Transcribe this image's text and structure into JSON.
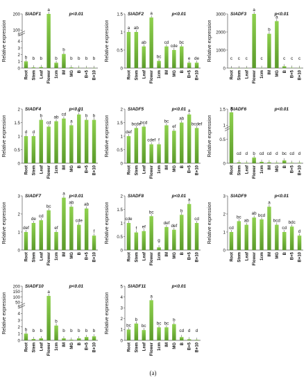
{
  "categories": [
    "Root",
    "Stem",
    "Leaf",
    "Flower",
    "1cm",
    "IM",
    "MG",
    "B",
    "B+5",
    "B+10"
  ],
  "colors": {
    "bar_top": "#8fd14f",
    "bar_bottom": "#5a9a2a",
    "axis": "#555555",
    "text": "#111111"
  },
  "caption": "(a)",
  "chart_data": [
    {
      "type": "bar",
      "title": "SlADF1",
      "pvalue": "p<0.01",
      "ylabel": "Relative expression",
      "ticks": [
        "0",
        "1",
        "2",
        "3",
        "4",
        "5",
        "100",
        "200"
      ],
      "broken_axis": true,
      "values": [
        1,
        0.1,
        0.15,
        200,
        0.8,
        2.1,
        0.1,
        0.05,
        0.03,
        0.02
      ],
      "letters": [
        "b",
        "b",
        "b",
        "a",
        "b",
        "b",
        "b",
        "b",
        "b",
        "b"
      ]
    },
    {
      "type": "bar",
      "title": "SlADF2",
      "pvalue": "p<0.01",
      "ylabel": "Relative expression",
      "ylim": [
        0,
        1.5
      ],
      "ticks": [
        "0",
        "0.5",
        "1",
        "1.5"
      ],
      "values": [
        1,
        1,
        0.6,
        1.4,
        0.2,
        0.6,
        0.5,
        0.6,
        0.15,
        0.15
      ],
      "letters": [
        "a",
        "ab",
        "ab",
        "a",
        "bc",
        "cd",
        "cde",
        "bc",
        "e",
        "de"
      ]
    },
    {
      "type": "bar",
      "title": "SlADF3",
      "pvalue": "p<0.01",
      "ylabel": "Relative expression",
      "ylim": [
        0,
        3000
      ],
      "ticks": [
        "0",
        "1000",
        "2000",
        "3000"
      ],
      "values": [
        1,
        2,
        5,
        3100,
        10,
        1900,
        2600,
        100,
        20,
        10
      ],
      "letters": [
        "c",
        "c",
        "c",
        "a",
        "c",
        "b",
        "a",
        "c",
        "c",
        "c"
      ]
    },
    {
      "type": "bar",
      "title": "SlADF4",
      "pvalue": "p<0.01",
      "ylabel": "Relative expression",
      "ylim": [
        0,
        2
      ],
      "ticks": [
        "0",
        "0.5",
        "1",
        "1.5",
        "2"
      ],
      "values": [
        1,
        1,
        1.6,
        1.35,
        1.55,
        1.65,
        1.4,
        1.8,
        1.6,
        1.6
      ],
      "letters": [
        "d",
        "d",
        "b",
        "cd",
        "ab",
        "cd",
        "a",
        "a",
        "b",
        "b"
      ]
    },
    {
      "type": "bar",
      "title": "SlADF5",
      "pvalue": "p<0.01",
      "ylabel": "Relative expression",
      "ylim": [
        0,
        2
      ],
      "ticks": [
        "0",
        "0.5",
        "1",
        "1.5",
        "2"
      ],
      "values": [
        1,
        1.3,
        1.35,
        0.7,
        0.7,
        1.4,
        1.2,
        1.5,
        1.8,
        1.3
      ],
      "letters": [
        "def",
        "bcde",
        "bcd",
        "cdef",
        "f",
        "bc",
        "ef",
        "ab",
        "a",
        "bcdef"
      ]
    },
    {
      "type": "bar",
      "title": "SlADF6",
      "pvalue": "p<0.01",
      "ylabel": "Relative expression",
      "ticks": [
        "0",
        "0.5",
        "1",
        "1.5"
      ],
      "broken_axis": true,
      "values": [
        1.4,
        0.02,
        0.01,
        0.12,
        0.03,
        0.02,
        0.01,
        0.06,
        0.01,
        0.01
      ],
      "letters": [
        "a",
        "cd",
        "d",
        "b",
        "cd",
        "cd",
        "d",
        "bc",
        "cd",
        "d"
      ]
    },
    {
      "type": "bar",
      "title": "SlADF7",
      "pvalue": "p<0.01",
      "ylabel": "Relative expression",
      "ylim": [
        0,
        3
      ],
      "ticks": [
        "0",
        "1",
        "2",
        "3"
      ],
      "values": [
        1,
        1.5,
        1.65,
        2.2,
        1,
        2.9,
        2.4,
        1.4,
        2.3,
        0.8
      ],
      "letters": [
        "def",
        "de",
        "cd",
        "bc",
        "ef",
        "a",
        "ab",
        "cde",
        "ab",
        "f"
      ]
    },
    {
      "type": "bar",
      "title": "SlADF8",
      "pvalue": "p<0.01",
      "ylabel": "Relative expression",
      "ylim": [
        0,
        2
      ],
      "ticks": [
        "0",
        "0.5",
        "1",
        "1.5",
        "2"
      ],
      "values": [
        1,
        0.65,
        0.7,
        1.25,
        0.1,
        0.85,
        0.75,
        1.3,
        1.7,
        1
      ],
      "letters": [
        "cde",
        "f",
        "ef",
        "bc",
        "g",
        "def",
        "def",
        "b",
        "a",
        "cd"
      ]
    },
    {
      "type": "bar",
      "title": "SlADF9",
      "pvalue": "p<0.01",
      "ylabel": "Relative expression",
      "ylim": [
        0,
        3
      ],
      "ticks": [
        "0",
        "1",
        "2",
        "3"
      ],
      "values": [
        1,
        1.6,
        1.4,
        1.8,
        1.7,
        2.4,
        1.4,
        1,
        1.3,
        0.8
      ],
      "letters": [
        "cd",
        "bc",
        "ab",
        "ab",
        "bcd",
        "a",
        "bcd",
        "cd",
        "bdc",
        "d"
      ]
    },
    {
      "type": "bar",
      "title": "SlADF10",
      "pvalue": "p<0.01",
      "ylabel": "Relative expression",
      "ticks": [
        "0",
        "1",
        "2",
        "3",
        "4",
        "5",
        "50",
        "100",
        "150",
        "200"
      ],
      "broken_axis": true,
      "values": [
        1,
        0.2,
        0.3,
        110,
        2.2,
        0.3,
        0.1,
        0.3,
        0.5,
        0.6
      ],
      "letters": [
        "b",
        "b",
        "b",
        "a",
        "b",
        "b",
        "b",
        "b",
        "b",
        "b"
      ]
    },
    {
      "type": "bar",
      "title": "SlADF11",
      "pvalue": "p<0.01",
      "ylabel": "Relative expression",
      "ylim": [
        0,
        5
      ],
      "ticks": [
        "0",
        "1",
        "2",
        "3",
        "4",
        "5"
      ],
      "values": [
        1,
        1.55,
        0.95,
        3.7,
        1.2,
        1.2,
        1.5,
        0.3,
        0.1,
        0.05
      ],
      "letters": [
        "bc",
        "b",
        "bc",
        "a",
        "bc",
        "bc",
        "b",
        "cd",
        "d",
        "d"
      ]
    }
  ]
}
